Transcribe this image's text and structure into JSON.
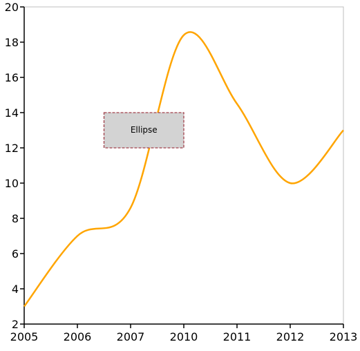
{
  "chart_data": {
    "type": "line",
    "categories": [
      "2005",
      "2006",
      "2007",
      "2010",
      "2011",
      "2012",
      "2013"
    ],
    "values": [
      3,
      7,
      8.6,
      18.4,
      14.5,
      10,
      13
    ],
    "ylim": [
      2,
      20
    ],
    "yticks": [
      2,
      4,
      6,
      8,
      10,
      12,
      14,
      16,
      18,
      20
    ],
    "line_color": "#FFA500",
    "grid": false,
    "annotation": {
      "shape": "rectangle",
      "text": "Ellipse",
      "x_range": [
        1.5,
        3
      ],
      "y_range": [
        12,
        14
      ],
      "fill": "#D3D3D3",
      "stroke": "#A0404A"
    }
  }
}
